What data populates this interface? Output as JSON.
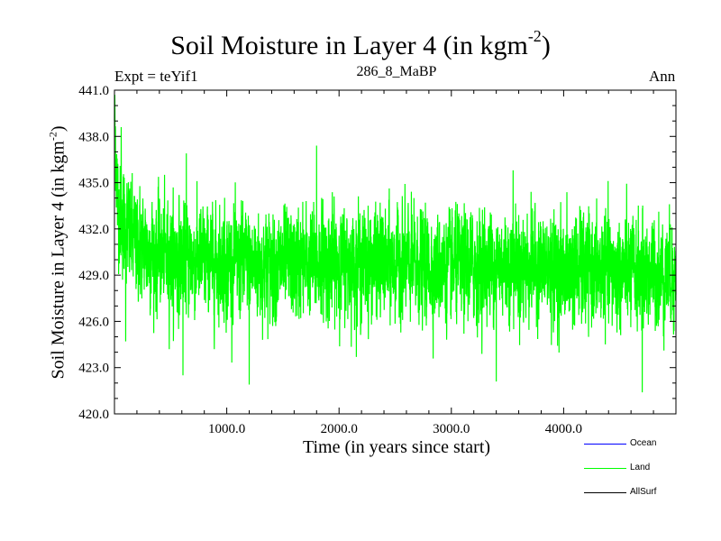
{
  "chart_data": {
    "type": "line",
    "title": "Soil Moisture in Layer 4 (in kgm",
    "title_exponent": "-2",
    "title_close": ")",
    "expt_label": "Expt = teYif1",
    "run_label": "286_8_MaBP",
    "season_label": "Ann",
    "xlabel": "Time (in years since start)",
    "ylabel": "Soil Moisture in Layer 4 (in kgm",
    "ylabel_exponent": "-2",
    "ylabel_close": ")",
    "xlim": [
      0,
      5000
    ],
    "ylim": [
      420.0,
      441.0
    ],
    "x_ticks": [
      1000,
      2000,
      3000,
      4000
    ],
    "x_tick_labels": [
      "1000.0",
      "2000.0",
      "3000.0",
      "4000.0"
    ],
    "y_ticks": [
      420,
      423,
      426,
      429,
      432,
      435,
      438,
      441
    ],
    "y_tick_labels": [
      "420.0",
      "423.0",
      "426.0",
      "429.0",
      "432.0",
      "435.0",
      "438.0",
      "441.0"
    ],
    "series": [
      {
        "name": "Ocean",
        "color": "#0000ff",
        "values": []
      },
      {
        "name": "Land",
        "color": "#00ff00",
        "x_start": 0,
        "x_end": 5000,
        "mean_profile": [
          [
            0,
            439.5
          ],
          [
            30,
            433.5
          ],
          [
            100,
            432.0
          ],
          [
            200,
            431.0
          ],
          [
            400,
            430.3
          ],
          [
            700,
            430.0
          ],
          [
            1000,
            429.8
          ],
          [
            1500,
            429.6
          ],
          [
            2000,
            429.9
          ],
          [
            2500,
            429.7
          ],
          [
            3000,
            429.5
          ],
          [
            3500,
            429.8
          ],
          [
            4000,
            429.3
          ],
          [
            4500,
            429.2
          ],
          [
            5000,
            429.0
          ]
        ],
        "noise_std": 1.6,
        "spikes": [
          [
            60,
            438.6
          ],
          [
            100,
            424.7
          ],
          [
            640,
            436.9
          ],
          [
            610,
            422.5
          ],
          [
            1200,
            421.9
          ],
          [
            1800,
            437.4
          ],
          [
            3400,
            422.1
          ],
          [
            3550,
            435.8
          ],
          [
            4700,
            421.4
          ],
          [
            4950,
            432.3
          ]
        ]
      },
      {
        "name": "AllSurf",
        "color": "#000000",
        "values": []
      }
    ]
  }
}
